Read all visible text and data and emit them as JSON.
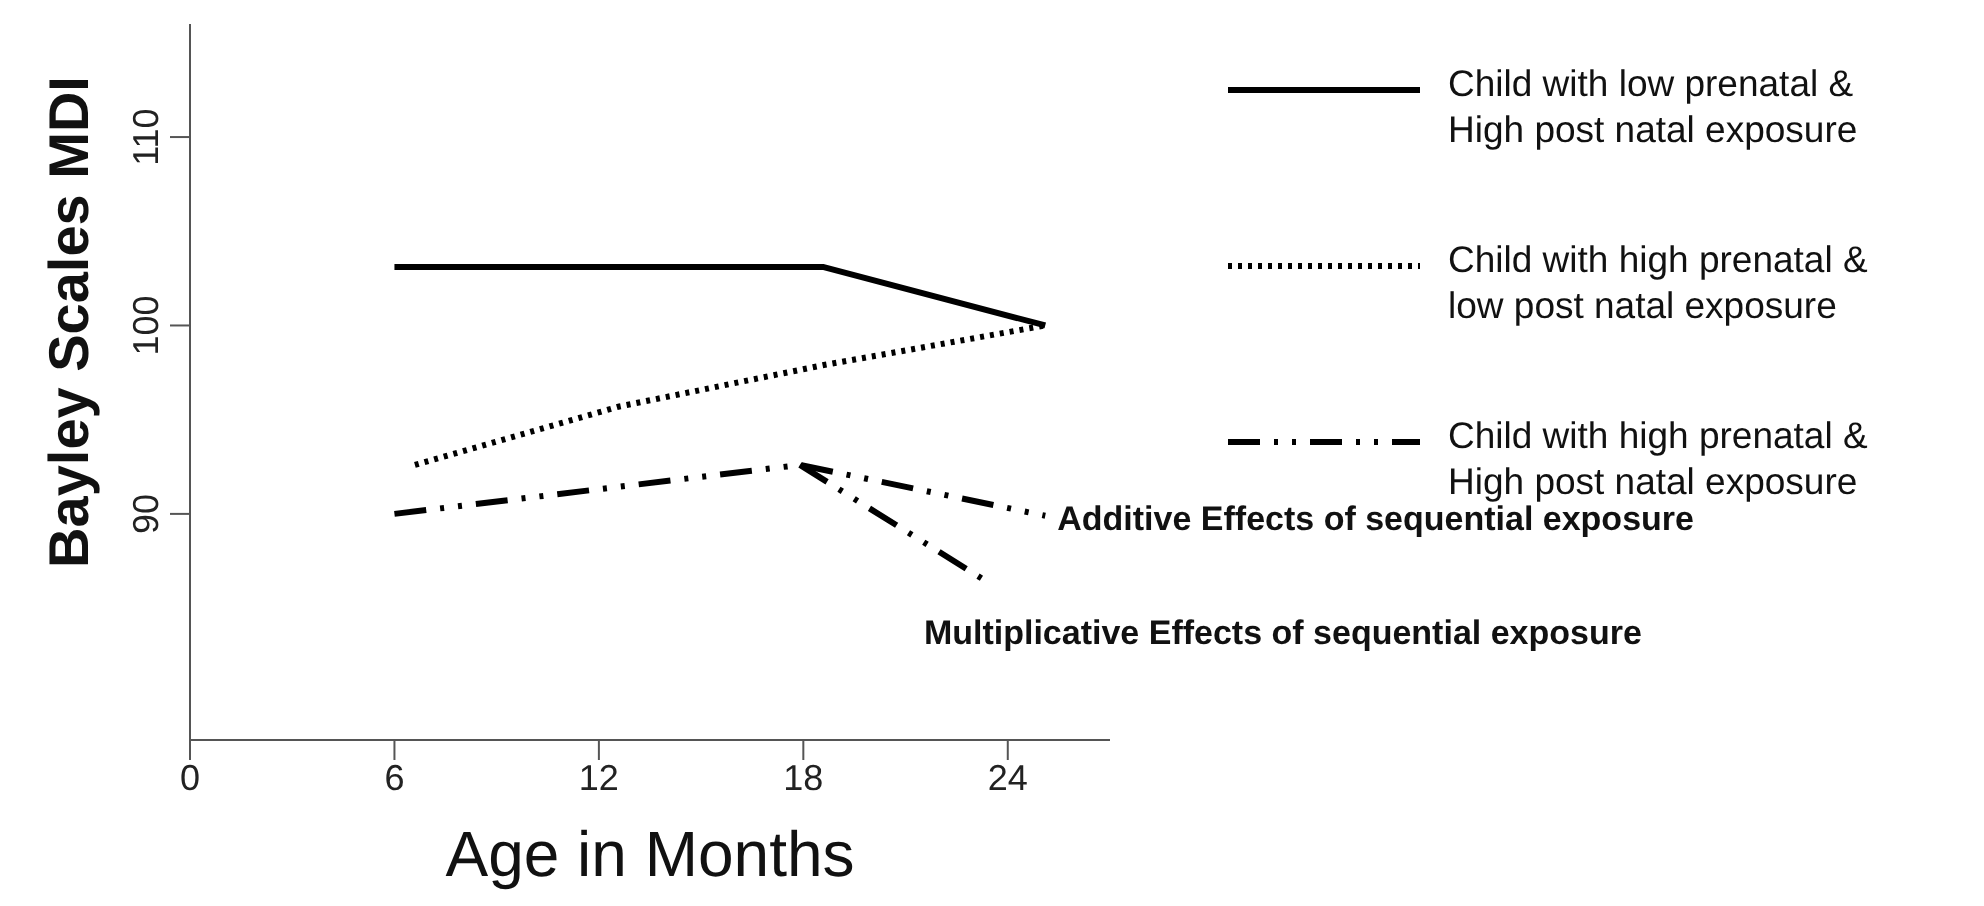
{
  "chart_data": {
    "type": "line",
    "xlabel": "Age in Months",
    "ylabel": "Bayley Scales MDI",
    "xlim": [
      0,
      27
    ],
    "xticks": [
      0,
      6,
      12,
      18,
      24
    ],
    "ylim": [
      78,
      116
    ],
    "yticks": [
      90,
      100,
      110
    ],
    "grid": false,
    "legend": "top right",
    "series": [
      {
        "name": "Child with low prenatal & High post natal exposure",
        "color": "#000000",
        "line_style": "solid",
        "x": [
          6,
          18.6,
          25.1
        ],
        "values": [
          103.1,
          103.1,
          100
        ]
      },
      {
        "name": "Child with high prenatal & low post natal exposure",
        "color": "#000000",
        "line_style": "dotted",
        "x": [
          6.6,
          12.6,
          18.6,
          25.1
        ],
        "values": [
          92.6,
          95.7,
          97.9,
          100
        ]
      },
      {
        "name": "Child with high prenatal & High post natal exposure",
        "color": "#000000",
        "line_style": "dashdot",
        "x": [
          6,
          17.9,
          25.1
        ],
        "values": [
          90,
          92.6,
          89.9
        ]
      },
      {
        "color": "#000000",
        "line_style": "dashdot",
        "x": [
          17.9,
          23.3
        ],
        "values": [
          92.6,
          86.5
        ]
      }
    ],
    "annotations": [
      {
        "text": "Additive Effects of sequential exposure",
        "x": 25.1,
        "y": 89.9
      },
      {
        "text": "Multiplicative Effects of sequential exposure",
        "x": 23.3,
        "y": 86.5
      }
    ]
  }
}
